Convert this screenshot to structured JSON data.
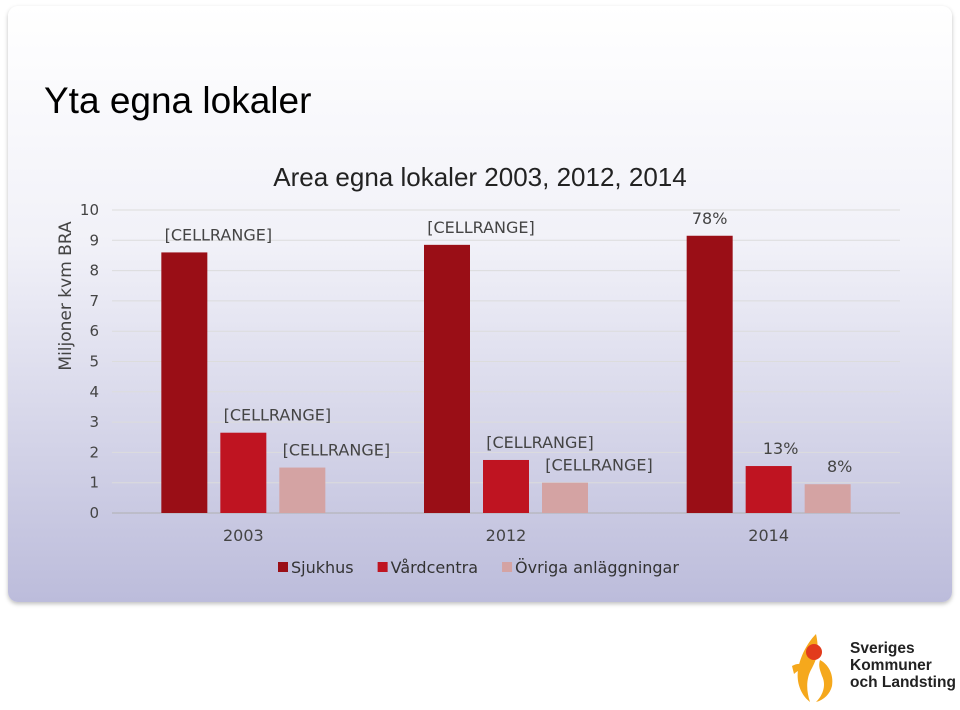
{
  "slide": {
    "title": "Yta egna lokaler"
  },
  "chart_data": {
    "type": "bar",
    "title": "Area egna lokaler 2003, 2012, 2014",
    "ylabel": "Miljoner kvm BRA",
    "xlabel": "",
    "ylim": [
      0,
      10
    ],
    "yticks": [
      "0",
      "1",
      "2",
      "3",
      "4",
      "5",
      "6",
      "7",
      "8",
      "9",
      "10"
    ],
    "grid": true,
    "legend_position": "bottom",
    "categories": [
      "2003",
      "2012",
      "2014"
    ],
    "series": [
      {
        "name": "Sjukhus",
        "color": "#9a0e16",
        "values": [
          8.6,
          8.85,
          9.15
        ],
        "labels": [
          "[CELLRANGE]",
          "[CELLRANGE]",
          "78%"
        ]
      },
      {
        "name": "Vårdcentra",
        "color": "#bf1421",
        "values": [
          2.65,
          1.75,
          1.55
        ],
        "labels": [
          "[CELLRANGE]",
          "[CELLRANGE]",
          "13%"
        ]
      },
      {
        "name": "Övriga anläggningar",
        "color": "#d4a3a3",
        "values": [
          1.5,
          1.0,
          0.95
        ],
        "labels": [
          "[CELLRANGE]",
          "[CELLRANGE]",
          "8%"
        ]
      }
    ]
  },
  "logo": {
    "line1": "Sveriges",
    "line2": "Kommuner",
    "line3": "och Landsting"
  }
}
